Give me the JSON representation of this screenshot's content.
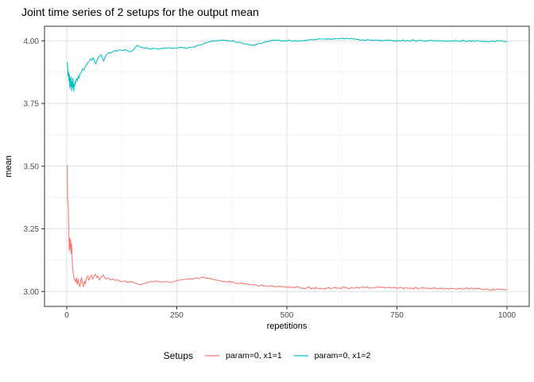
{
  "title": "Joint time series of 2 setups for the output mean",
  "legend": {
    "title": "Setups",
    "items": [
      {
        "label": "param=0, x1=1",
        "color": "#F8766D"
      },
      {
        "label": "param=0, x1=2",
        "color": "#00BFC4"
      }
    ]
  },
  "chart_data": {
    "type": "line",
    "title": "Joint time series of 2 setups for the output mean",
    "xlabel": "repetitions",
    "ylabel": "mean",
    "xlim": [
      0,
      1000
    ],
    "ylim": [
      3.0,
      4.0
    ],
    "grid": "on",
    "legend_position": "bottom",
    "x_ticks": [
      0,
      250,
      500,
      750,
      1000
    ],
    "x_tick_labels": [
      "0",
      "250",
      "500",
      "750",
      "1000"
    ],
    "x_minor_ticks": [
      125,
      375,
      625,
      875
    ],
    "y_ticks": [
      4.0,
      3.75,
      3.5,
      3.25,
      3.0
    ],
    "y_tick_labels": [
      "4.00",
      "3.75",
      "3.50",
      "3.25",
      "3.00"
    ],
    "y_minor_ticks": [
      3.875,
      3.625,
      3.375,
      3.125
    ],
    "series": [
      {
        "name": "param=0, x1=1",
        "color": "#F8766D",
        "noise": 0.004,
        "points": [
          [
            1,
            3.505
          ],
          [
            2,
            3.36
          ],
          [
            3,
            3.357
          ],
          [
            4,
            3.3
          ],
          [
            5,
            3.21
          ],
          [
            6,
            3.16
          ],
          [
            7,
            3.215
          ],
          [
            8,
            3.17
          ],
          [
            9,
            3.205
          ],
          [
            10,
            3.15
          ],
          [
            11,
            3.19
          ],
          [
            12,
            3.155
          ],
          [
            13,
            3.1
          ],
          [
            14,
            3.082
          ],
          [
            15,
            3.072
          ],
          [
            16,
            3.058
          ],
          [
            18,
            3.048
          ],
          [
            20,
            3.038
          ],
          [
            22,
            3.056
          ],
          [
            24,
            3.028
          ],
          [
            26,
            3.05
          ],
          [
            28,
            3.026
          ],
          [
            30,
            3.02
          ],
          [
            32,
            3.046
          ],
          [
            34,
            3.056
          ],
          [
            36,
            3.03
          ],
          [
            38,
            3.018
          ],
          [
            40,
            3.042
          ],
          [
            42,
            3.03
          ],
          [
            44,
            3.05
          ],
          [
            46,
            3.057
          ],
          [
            48,
            3.062
          ],
          [
            50,
            3.046
          ],
          [
            53,
            3.056
          ],
          [
            56,
            3.066
          ],
          [
            59,
            3.05
          ],
          [
            62,
            3.062
          ],
          [
            65,
            3.07
          ],
          [
            68,
            3.056
          ],
          [
            71,
            3.062
          ],
          [
            74,
            3.046
          ],
          [
            77,
            3.056
          ],
          [
            80,
            3.06
          ],
          [
            83,
            3.066
          ],
          [
            86,
            3.056
          ],
          [
            90,
            3.05
          ],
          [
            95,
            3.054
          ],
          [
            100,
            3.046
          ],
          [
            105,
            3.05
          ],
          [
            110,
            3.044
          ],
          [
            115,
            3.047
          ],
          [
            120,
            3.041
          ],
          [
            126,
            3.039
          ],
          [
            132,
            3.043
          ],
          [
            138,
            3.036
          ],
          [
            144,
            3.04
          ],
          [
            150,
            3.038
          ],
          [
            156,
            3.033
          ],
          [
            162,
            3.03
          ],
          [
            168,
            3.027
          ],
          [
            174,
            3.031
          ],
          [
            180,
            3.034
          ],
          [
            186,
            3.038
          ],
          [
            192,
            3.04
          ],
          [
            200,
            3.041
          ],
          [
            208,
            3.038
          ],
          [
            216,
            3.037
          ],
          [
            224,
            3.039
          ],
          [
            232,
            3.037
          ],
          [
            240,
            3.039
          ],
          [
            248,
            3.042
          ],
          [
            256,
            3.045
          ],
          [
            264,
            3.047
          ],
          [
            272,
            3.049
          ],
          [
            280,
            3.051
          ],
          [
            288,
            3.05
          ],
          [
            296,
            3.053
          ],
          [
            304,
            3.055
          ],
          [
            312,
            3.056
          ],
          [
            318,
            3.053
          ],
          [
            326,
            3.05
          ],
          [
            334,
            3.047
          ],
          [
            342,
            3.045
          ],
          [
            350,
            3.042
          ],
          [
            358,
            3.04
          ],
          [
            366,
            3.038
          ],
          [
            374,
            3.036
          ],
          [
            382,
            3.034
          ],
          [
            390,
            3.033
          ],
          [
            400,
            3.031
          ],
          [
            410,
            3.029
          ],
          [
            420,
            3.027
          ],
          [
            430,
            3.026
          ],
          [
            440,
            3.024
          ],
          [
            450,
            3.023
          ],
          [
            460,
            3.022
          ],
          [
            470,
            3.021
          ],
          [
            480,
            3.02
          ],
          [
            490,
            3.019
          ],
          [
            500,
            3.018
          ],
          [
            515,
            3.017
          ],
          [
            530,
            3.016
          ],
          [
            545,
            3.015
          ],
          [
            560,
            3.014
          ],
          [
            575,
            3.013
          ],
          [
            590,
            3.013
          ],
          [
            605,
            3.014
          ],
          [
            620,
            3.014
          ],
          [
            635,
            3.015
          ],
          [
            650,
            3.014
          ],
          [
            665,
            3.015
          ],
          [
            680,
            3.016
          ],
          [
            695,
            3.015
          ],
          [
            710,
            3.016
          ],
          [
            725,
            3.015
          ],
          [
            740,
            3.014
          ],
          [
            755,
            3.015
          ],
          [
            770,
            3.014
          ],
          [
            785,
            3.013
          ],
          [
            800,
            3.013
          ],
          [
            815,
            3.014
          ],
          [
            830,
            3.013
          ],
          [
            845,
            3.012
          ],
          [
            860,
            3.013
          ],
          [
            875,
            3.012
          ],
          [
            890,
            3.013
          ],
          [
            905,
            3.011
          ],
          [
            920,
            3.012
          ],
          [
            935,
            3.011
          ],
          [
            945,
            3.007
          ],
          [
            955,
            3.01
          ],
          [
            965,
            3.006
          ],
          [
            975,
            3.009
          ],
          [
            985,
            3.008
          ],
          [
            1000,
            3.009
          ]
        ]
      },
      {
        "name": "param=0, x1=2",
        "color": "#00BFC4",
        "noise": 0.003,
        "points": [
          [
            1,
            3.915
          ],
          [
            2,
            3.9
          ],
          [
            3,
            3.858
          ],
          [
            4,
            3.878
          ],
          [
            5,
            3.838
          ],
          [
            6,
            3.868
          ],
          [
            7,
            3.81
          ],
          [
            8,
            3.852
          ],
          [
            9,
            3.818
          ],
          [
            10,
            3.858
          ],
          [
            11,
            3.8
          ],
          [
            12,
            3.838
          ],
          [
            13,
            3.812
          ],
          [
            14,
            3.852
          ],
          [
            15,
            3.822
          ],
          [
            16,
            3.798
          ],
          [
            17,
            3.828
          ],
          [
            18,
            3.818
          ],
          [
            19,
            3.838
          ],
          [
            20,
            3.832
          ],
          [
            22,
            3.848
          ],
          [
            24,
            3.842
          ],
          [
            26,
            3.858
          ],
          [
            28,
            3.852
          ],
          [
            30,
            3.868
          ],
          [
            33,
            3.873
          ],
          [
            36,
            3.888
          ],
          [
            39,
            3.883
          ],
          [
            42,
            3.898
          ],
          [
            45,
            3.903
          ],
          [
            48,
            3.913
          ],
          [
            51,
            3.918
          ],
          [
            54,
            3.928
          ],
          [
            57,
            3.923
          ],
          [
            60,
            3.933
          ],
          [
            63,
            3.918
          ],
          [
            66,
            3.908
          ],
          [
            69,
            3.923
          ],
          [
            72,
            3.933
          ],
          [
            75,
            3.94
          ],
          [
            78,
            3.944
          ],
          [
            81,
            3.93
          ],
          [
            84,
            3.92
          ],
          [
            87,
            3.934
          ],
          [
            90,
            3.944
          ],
          [
            95,
            3.953
          ],
          [
            100,
            3.951
          ],
          [
            105,
            3.957
          ],
          [
            110,
            3.961
          ],
          [
            115,
            3.959
          ],
          [
            120,
            3.964
          ],
          [
            126,
            3.961
          ],
          [
            132,
            3.965
          ],
          [
            138,
            3.96
          ],
          [
            144,
            3.956
          ],
          [
            150,
            3.962
          ],
          [
            155,
            3.972
          ],
          [
            160,
            3.981
          ],
          [
            165,
            3.977
          ],
          [
            170,
            3.974
          ],
          [
            176,
            3.971
          ],
          [
            182,
            3.972
          ],
          [
            190,
            3.969
          ],
          [
            198,
            3.971
          ],
          [
            206,
            3.968
          ],
          [
            214,
            3.97
          ],
          [
            222,
            3.971
          ],
          [
            230,
            3.972
          ],
          [
            238,
            3.97
          ],
          [
            246,
            3.971
          ],
          [
            254,
            3.973
          ],
          [
            262,
            3.974
          ],
          [
            270,
            3.972
          ],
          [
            278,
            3.974
          ],
          [
            286,
            3.976
          ],
          [
            294,
            3.979
          ],
          [
            302,
            3.983
          ],
          [
            310,
            3.987
          ],
          [
            318,
            3.992
          ],
          [
            326,
            3.996
          ],
          [
            334,
            3.999
          ],
          [
            342,
            4.001
          ],
          [
            350,
            4.002
          ],
          [
            358,
            4.001
          ],
          [
            366,
            4.0
          ],
          [
            374,
            3.999
          ],
          [
            382,
            3.997
          ],
          [
            390,
            3.994
          ],
          [
            398,
            3.991
          ],
          [
            406,
            3.987
          ],
          [
            414,
            3.984
          ],
          [
            422,
            3.983
          ],
          [
            430,
            3.985
          ],
          [
            438,
            3.989
          ],
          [
            446,
            3.993
          ],
          [
            454,
            3.997
          ],
          [
            462,
            4.0
          ],
          [
            470,
            4.002
          ],
          [
            478,
            4.001
          ],
          [
            486,
            4.0
          ],
          [
            494,
            4.0
          ],
          [
            502,
            4.001
          ],
          [
            510,
            4.0
          ],
          [
            520,
            4.0
          ],
          [
            530,
            4.001
          ],
          [
            540,
            4.002
          ],
          [
            550,
            4.003
          ],
          [
            560,
            4.005
          ],
          [
            570,
            4.006
          ],
          [
            580,
            4.007
          ],
          [
            590,
            4.006
          ],
          [
            600,
            4.007
          ],
          [
            610,
            4.008
          ],
          [
            620,
            4.009
          ],
          [
            630,
            4.008
          ],
          [
            640,
            4.009
          ],
          [
            650,
            4.007
          ],
          [
            660,
            4.006
          ],
          [
            670,
            4.004
          ],
          [
            680,
            4.003
          ],
          [
            690,
            4.002
          ],
          [
            700,
            4.001
          ],
          [
            715,
            4.0
          ],
          [
            730,
            4.001
          ],
          [
            745,
            4.0
          ],
          [
            760,
            4.001
          ],
          [
            775,
            4.0
          ],
          [
            790,
            4.001
          ],
          [
            805,
            4.0
          ],
          [
            820,
            4.0
          ],
          [
            835,
            4.001
          ],
          [
            850,
            4.0
          ],
          [
            865,
            4.0
          ],
          [
            880,
            4.0
          ],
          [
            895,
            4.0
          ],
          [
            910,
            3.999
          ],
          [
            925,
            3.999
          ],
          [
            940,
            3.998
          ],
          [
            950,
            3.997
          ],
          [
            960,
            3.996
          ],
          [
            970,
            3.998
          ],
          [
            980,
            3.999
          ],
          [
            990,
            3.998
          ],
          [
            1000,
            3.998
          ]
        ]
      }
    ]
  }
}
